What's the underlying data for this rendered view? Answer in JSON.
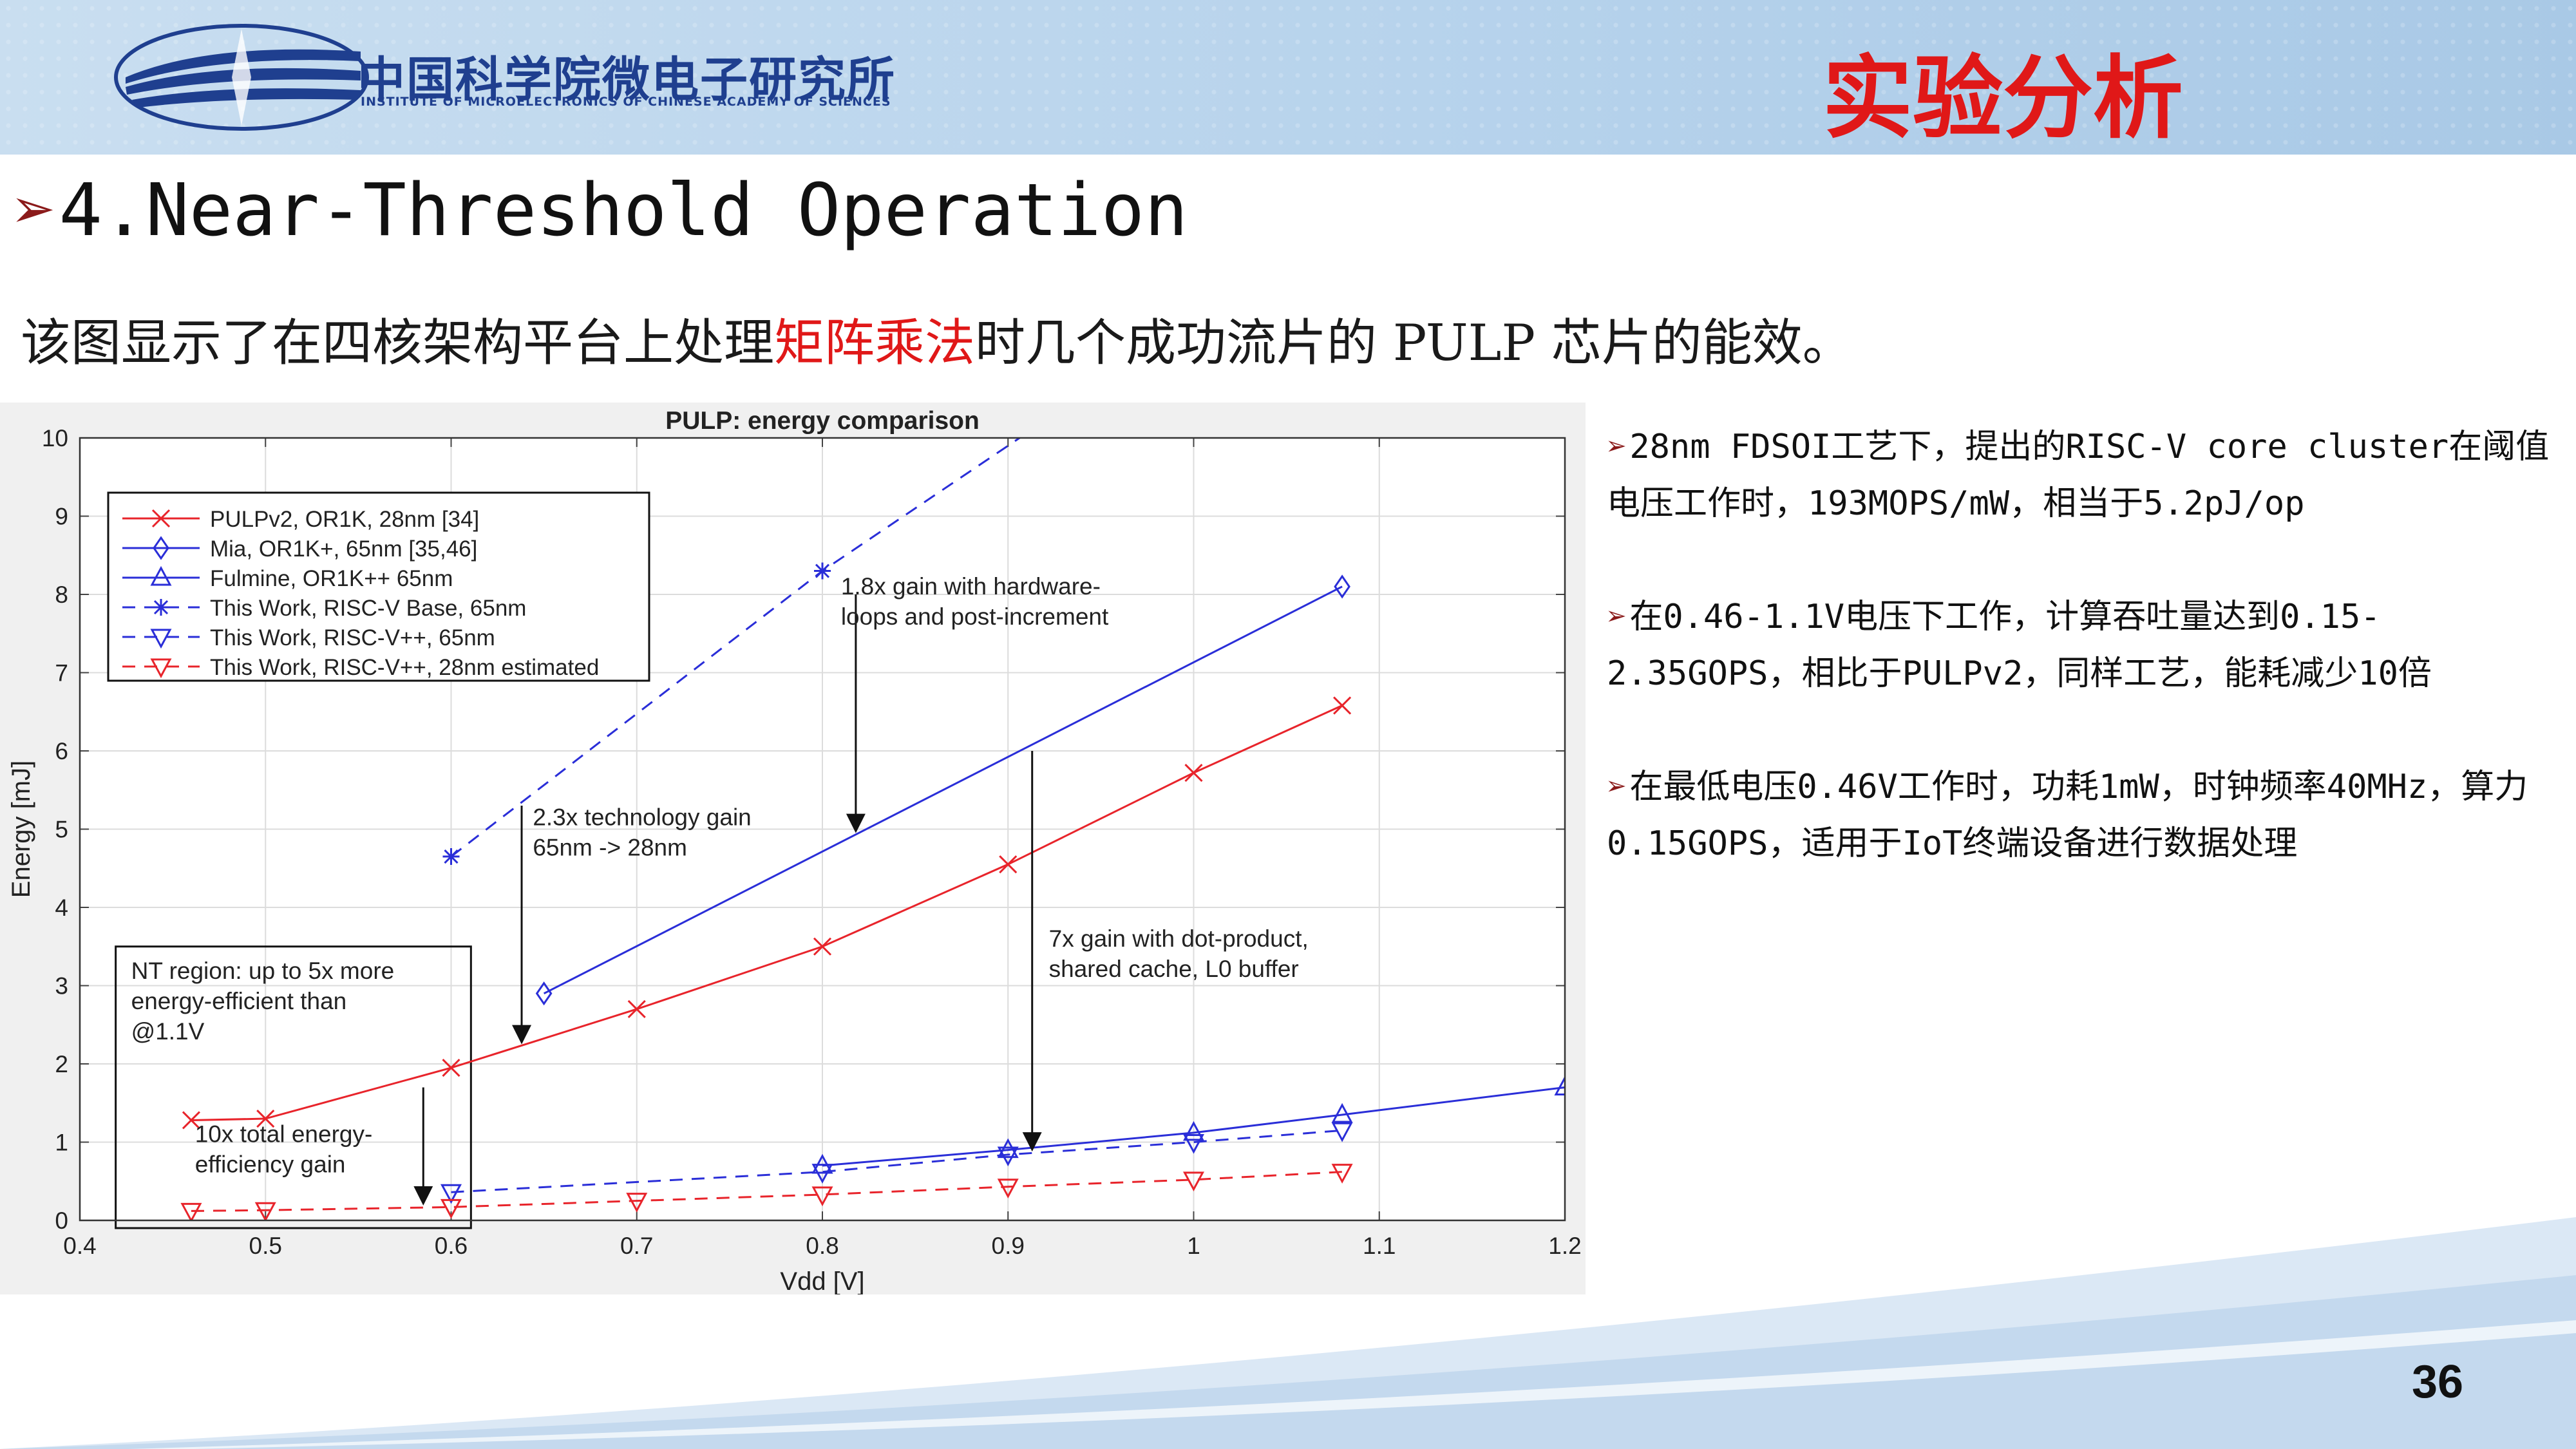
{
  "header": {
    "institute_cn": "中国科学院微电子研究所",
    "institute_en": "INSTITUTE OF MICROELECTRONICS OF CHINESE ACADEMY OF SCIENCES",
    "section_title": "实验分析",
    "logo_icon": "ime-cas-logo-icon"
  },
  "slide": {
    "title_marker": "➢",
    "title": "4.Near-Threshold Operation",
    "subtitle_before": "该图显示了在四核架构平台上处理",
    "subtitle_highlight": "矩阵乘法",
    "subtitle_after": "时几个成功流片的 PULP 芯片的能效。",
    "highlight_color": "#e01818",
    "page_number": "36"
  },
  "bullets": [
    {
      "marker": "➢",
      "text": "28nm FDSOI工艺下，提出的RISC-V core cluster在阈值电压工作时，193MOPS/mW，相当于5.2pJ/op"
    },
    {
      "marker": "➢",
      "text": "在0.46-1.1V电压下工作，计算吞吐量达到0.15-2.35GOPS，相比于PULPv2，同样工艺，能耗减少10倍"
    },
    {
      "marker": "➢",
      "text": "在最低电压0.46V工作时，功耗1mW，时钟频率40MHz，算力0.15GOPS，适用于IoT终端设备进行数据处理"
    }
  ],
  "chart_data": {
    "type": "line",
    "title": "PULP: energy comparison",
    "xlabel": "Vdd [V]",
    "ylabel": "Energy [mJ]",
    "xlim": [
      0.4,
      1.2
    ],
    "ylim": [
      0,
      10
    ],
    "xticks": [
      0.4,
      0.5,
      0.6,
      0.7,
      0.8,
      0.9,
      1,
      1.1,
      1.2
    ],
    "xtick_labels": [
      "0.4",
      "0.5",
      "0.6",
      "0.7",
      "0.8",
      "0.9",
      "1",
      "1.1",
      "1.2"
    ],
    "yticks": [
      0,
      1,
      2,
      3,
      4,
      5,
      6,
      7,
      8,
      9,
      10
    ],
    "ytick_labels": [
      "0",
      "1",
      "2",
      "3",
      "4",
      "5",
      "6",
      "7",
      "8",
      "9",
      "10"
    ],
    "grid": true,
    "legend_position": "top-left",
    "series": [
      {
        "name": "PULPv2, OR1K, 28nm [34]",
        "color": "#e8242b",
        "dash": "solid",
        "marker": "x",
        "x": [
          0.46,
          0.5,
          0.6,
          0.7,
          0.8,
          0.9,
          1.0,
          1.08
        ],
        "y": [
          1.28,
          1.3,
          1.95,
          2.7,
          3.5,
          4.55,
          5.72,
          6.58
        ]
      },
      {
        "name": "Mia, OR1K+, 65nm [35,46]",
        "color": "#2a2ed8",
        "dash": "solid",
        "marker": "diamond",
        "x": [
          0.65,
          1.08
        ],
        "y": [
          2.9,
          8.1
        ]
      },
      {
        "name": "Fulmine, OR1K++ 65nm",
        "color": "#2a2ed8",
        "dash": "solid",
        "marker": "triangle-up",
        "x": [
          0.8,
          0.9,
          1.0,
          1.08,
          1.2
        ],
        "y": [
          0.7,
          0.9,
          1.12,
          1.35,
          1.7
        ]
      },
      {
        "name": "This Work, RISC-V Base, 65nm",
        "color": "#2a2ed8",
        "dash": "dashed",
        "marker": "asterisk",
        "x": [
          0.6,
          0.8,
          0.95
        ],
        "y": [
          4.65,
          8.3,
          10.7
        ]
      },
      {
        "name": "This Work, RISC-V++, 65nm",
        "color": "#2a2ed8",
        "dash": "dashed",
        "marker": "triangle-down",
        "x": [
          0.6,
          0.8,
          0.9,
          1.0,
          1.08
        ],
        "y": [
          0.36,
          0.62,
          0.84,
          1.0,
          1.15
        ]
      },
      {
        "name": "This Work, RISC-V++, 28nm estimated",
        "color": "#e8242b",
        "dash": "dashed",
        "marker": "triangle-down",
        "x": [
          0.46,
          0.5,
          0.6,
          0.7,
          0.8,
          0.9,
          1.0,
          1.08
        ],
        "y": [
          0.12,
          0.13,
          0.17,
          0.25,
          0.33,
          0.43,
          0.52,
          0.62
        ]
      }
    ],
    "annotations": [
      {
        "lines": [
          "1.8x gain with hardware-",
          "loops and post-increment"
        ],
        "text_x": 0.81,
        "text_y": 8.0,
        "arrow_from": [
          0.818,
          8.0
        ],
        "arrow_to": [
          0.818,
          4.95
        ]
      },
      {
        "lines": [
          "2.3x technology gain",
          "65nm -> 28nm"
        ],
        "text_x": 0.644,
        "text_y": 5.05,
        "arrow_from": [
          0.638,
          5.3
        ],
        "arrow_to": [
          0.638,
          2.25
        ]
      },
      {
        "lines": [
          "7x gain with dot-product,",
          "shared cache, L0 buffer"
        ],
        "text_x": 0.922,
        "text_y": 3.5,
        "arrow_from": [
          0.913,
          6.0
        ],
        "arrow_to": [
          0.913,
          0.88
        ]
      },
      {
        "lines": [
          "10x total energy-",
          "efficiency gain"
        ],
        "text_x": 0.462,
        "text_y": 1.0,
        "arrow_from": [
          0.585,
          1.7
        ],
        "arrow_to": [
          0.585,
          0.19
        ]
      }
    ],
    "region_box": {
      "lines": [
        "NT region: up to 5x more",
        "energy-efficient than",
        "@1.1V"
      ],
      "x0": 0.42,
      "x1": 0.61,
      "y0": 0,
      "y1": 3.5
    }
  }
}
